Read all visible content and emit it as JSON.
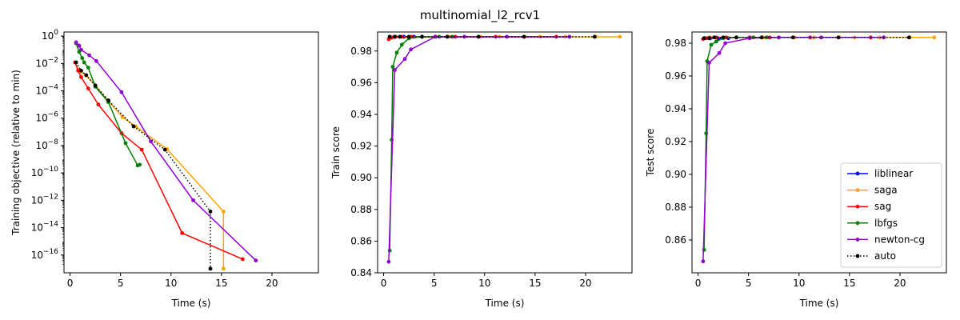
{
  "figure": {
    "title": "multinomial_l2_rcv1"
  },
  "legend": {
    "entries": [
      {
        "label": "liblinear",
        "color": "#0000ff",
        "dash": false
      },
      {
        "label": "saga",
        "color": "#ffa500",
        "dash": false
      },
      {
        "label": "sag",
        "color": "#ff0000",
        "dash": false
      },
      {
        "label": "lbfgs",
        "color": "#008000",
        "dash": false
      },
      {
        "label": "newton-cg",
        "color": "#9400d3",
        "dash": false
      },
      {
        "label": "auto",
        "color": "#000000",
        "dash": true
      }
    ]
  },
  "chart_data": [
    {
      "type": "line",
      "xlabel": "Time (s)",
      "ylabel": "Training objective (relative to min)",
      "yscale": "log",
      "xlim": [
        -0.6,
        24.6
      ],
      "ylim": [
        -17.3,
        0.3
      ],
      "xticks": [
        0,
        5,
        10,
        15,
        20
      ],
      "xtick_labels": [
        "0",
        "5",
        "10",
        "15",
        "20"
      ],
      "yticks": [
        0,
        -2,
        -4,
        -6,
        -8,
        -10,
        -12,
        -14,
        -16
      ],
      "ytick_base": "10",
      "ytick_exps": [
        "0",
        "−2",
        "−4",
        "−6",
        "−8",
        "−10",
        "−12",
        "−14",
        "−16"
      ],
      "series": [
        {
          "name": "saga",
          "color": "#ffa500",
          "x": [
            0.5,
            0.8,
            1.1,
            1.6,
            2.5,
            3.8,
            5.2,
            6.5,
            9.6,
            15.2,
            15.2
          ],
          "y": [
            0.012,
            0.0035,
            0.0025,
            0.0013,
            0.00025,
            1.8e-05,
            1.2e-06,
            2.5e-07,
            5.5e-09,
            1.5e-13,
            1e-17
          ]
        },
        {
          "name": "sag",
          "color": "#ff0000",
          "x": [
            0.5,
            0.8,
            1.1,
            1.8,
            2.8,
            5.1,
            7.1,
            11.1,
            17.1
          ],
          "y": [
            0.012,
            0.003,
            0.001,
            0.00015,
            1e-05,
            8e-08,
            5e-09,
            4e-15,
            5e-17
          ]
        },
        {
          "name": "lbfgs",
          "color": "#008000",
          "x": [
            0.6,
            0.9,
            1.2,
            1.4,
            1.8,
            2.5,
            3.8,
            5.5,
            6.7,
            6.9
          ],
          "y": [
            0.3,
            0.07,
            0.025,
            0.012,
            0.005,
            0.0002,
            1.5e-05,
            1.5e-08,
            3.5e-10,
            4e-10
          ]
        },
        {
          "name": "newton-cg",
          "color": "#9400d3",
          "x": [
            0.6,
            0.9,
            1.1,
            1.9,
            2.6,
            5.1,
            8.0,
            12.2,
            18.4
          ],
          "y": [
            0.35,
            0.2,
            0.1,
            0.04,
            0.015,
            8e-05,
            2e-08,
            1e-12,
            4e-17
          ]
        },
        {
          "name": "auto",
          "color": "#000000",
          "dash": true,
          "x": [
            0.6,
            1.1,
            1.6,
            2.5,
            3.8,
            6.3,
            9.4,
            13.9,
            13.9
          ],
          "y": [
            0.012,
            0.003,
            0.0014,
            0.00025,
            2e-05,
            2.5e-07,
            5e-09,
            1.5e-13,
            1e-17
          ]
        }
      ]
    },
    {
      "type": "line",
      "xlabel": "Time (s)",
      "ylabel": "Train score",
      "xlim": [
        -0.6,
        24.6
      ],
      "ylim": [
        0.84,
        0.992
      ],
      "xticks": [
        0,
        5,
        10,
        15,
        20
      ],
      "xtick_labels": [
        "0",
        "5",
        "10",
        "15",
        "20"
      ],
      "yticks": [
        0.84,
        0.86,
        0.88,
        0.9,
        0.92,
        0.94,
        0.96,
        0.98
      ],
      "ytick_labels": [
        "0.84",
        "0.86",
        "0.88",
        "0.90",
        "0.92",
        "0.94",
        "0.96",
        "0.98"
      ],
      "series": [
        {
          "name": "liblinear",
          "color": "#0000ff",
          "x": [
            0.6,
            1.2,
            2.0,
            3.0
          ],
          "y": [
            0.989,
            0.989,
            0.989,
            0.989
          ]
        },
        {
          "name": "saga",
          "color": "#ffa500",
          "x": [
            0.6,
            1.2,
            2.5,
            3.8,
            5.2,
            6.5,
            9.6,
            11.5,
            14.0,
            15.5,
            18.0,
            21.0,
            23.4
          ],
          "y": [
            0.988,
            0.989,
            0.989,
            0.989,
            0.989,
            0.989,
            0.989,
            0.989,
            0.989,
            0.989,
            0.989,
            0.989,
            0.989
          ]
        },
        {
          "name": "sag",
          "color": "#ff0000",
          "x": [
            0.5,
            0.8,
            1.1,
            1.8,
            2.8,
            5.1,
            7.1,
            11.1,
            17.1
          ],
          "y": [
            0.9875,
            0.9885,
            0.989,
            0.989,
            0.989,
            0.989,
            0.989,
            0.989,
            0.989
          ]
        },
        {
          "name": "lbfgs",
          "color": "#008000",
          "x": [
            0.6,
            0.8,
            0.9,
            1.3,
            1.8,
            2.5,
            3.8,
            5.5,
            6.8
          ],
          "y": [
            0.854,
            0.924,
            0.97,
            0.979,
            0.984,
            0.988,
            0.989,
            0.989,
            0.989
          ]
        },
        {
          "name": "newton-cg",
          "color": "#9400d3",
          "x": [
            0.5,
            1.1,
            2.1,
            2.7,
            5.1,
            8.0,
            12.2,
            18.4
          ],
          "y": [
            0.847,
            0.968,
            0.975,
            0.981,
            0.989,
            0.989,
            0.989,
            0.989
          ]
        },
        {
          "name": "auto",
          "color": "#000000",
          "dash": true,
          "x": [
            0.6,
            1.1,
            1.6,
            2.5,
            3.8,
            6.3,
            9.4,
            13.9,
            20.9
          ],
          "y": [
            0.989,
            0.989,
            0.989,
            0.989,
            0.989,
            0.989,
            0.989,
            0.989,
            0.989
          ]
        }
      ]
    },
    {
      "type": "line",
      "xlabel": "Time (s)",
      "ylabel": "Test score",
      "xlim": [
        -0.6,
        24.6
      ],
      "ylim": [
        0.84,
        0.9868
      ],
      "xticks": [
        0,
        5,
        10,
        15,
        20
      ],
      "xtick_labels": [
        "0",
        "5",
        "10",
        "15",
        "20"
      ],
      "yticks": [
        0.86,
        0.88,
        0.9,
        0.92,
        0.94,
        0.96,
        0.98
      ],
      "ytick_labels": [
        "0.86",
        "0.88",
        "0.90",
        "0.92",
        "0.94",
        "0.96",
        "0.98"
      ],
      "series": [
        {
          "name": "liblinear",
          "color": "#0000ff",
          "x": [
            0.6,
            1.2,
            2.0,
            3.0
          ],
          "y": [
            0.983,
            0.983,
            0.983,
            0.983
          ]
        },
        {
          "name": "saga",
          "color": "#ffa500",
          "x": [
            0.6,
            1.2,
            2.5,
            3.8,
            5.2,
            6.5,
            9.6,
            11.5,
            14.0,
            15.5,
            18.0,
            21.0,
            23.4
          ],
          "y": [
            0.983,
            0.9835,
            0.9835,
            0.9835,
            0.9835,
            0.9835,
            0.9835,
            0.9835,
            0.9835,
            0.9835,
            0.9835,
            0.9835,
            0.9835
          ]
        },
        {
          "name": "sag",
          "color": "#ff0000",
          "x": [
            0.5,
            0.8,
            1.1,
            1.8,
            2.8,
            5.1,
            7.1,
            11.1,
            17.1
          ],
          "y": [
            0.9825,
            0.983,
            0.9833,
            0.9835,
            0.9835,
            0.9835,
            0.9835,
            0.9835,
            0.9835
          ]
        },
        {
          "name": "lbfgs",
          "color": "#008000",
          "x": [
            0.6,
            0.8,
            0.9,
            1.3,
            1.8,
            2.5,
            3.8,
            5.5,
            6.8
          ],
          "y": [
            0.854,
            0.925,
            0.969,
            0.979,
            0.981,
            0.983,
            0.9835,
            0.9835,
            0.9835
          ]
        },
        {
          "name": "newton-cg",
          "color": "#9400d3",
          "x": [
            0.5,
            1.1,
            2.1,
            2.7,
            5.1,
            8.0,
            12.2,
            18.4
          ],
          "y": [
            0.847,
            0.968,
            0.974,
            0.98,
            0.983,
            0.9835,
            0.9835,
            0.9835
          ]
        },
        {
          "name": "auto",
          "color": "#000000",
          "dash": true,
          "x": [
            0.6,
            1.1,
            1.6,
            2.5,
            3.8,
            6.3,
            9.4,
            13.9,
            20.9
          ],
          "y": [
            0.983,
            0.983,
            0.9835,
            0.9835,
            0.9835,
            0.9835,
            0.9835,
            0.9835,
            0.9835
          ]
        }
      ]
    }
  ]
}
